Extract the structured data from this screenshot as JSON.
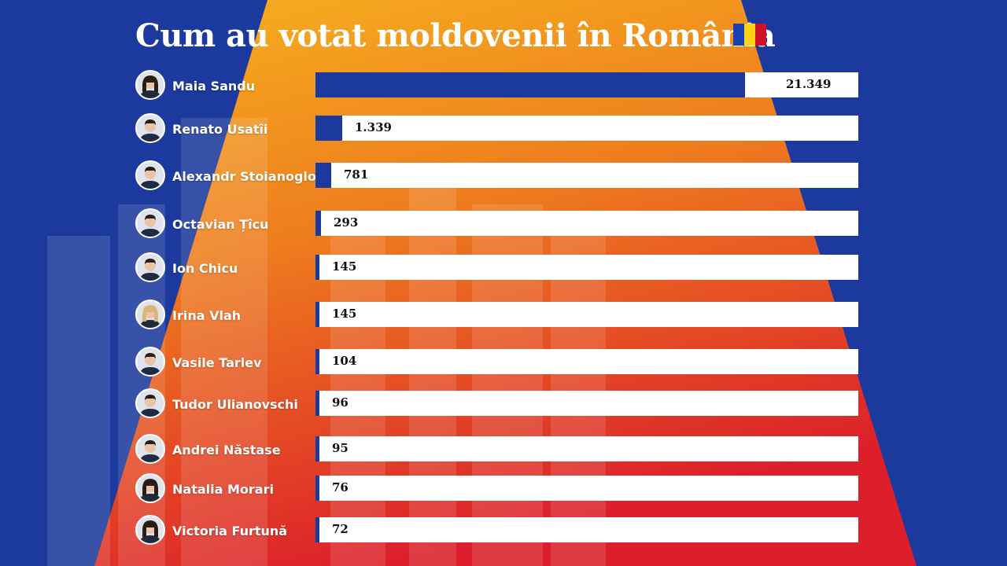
{
  "title": "Cum au votat moldovenii în România",
  "colors": {
    "background_blue": "#1c3a9e",
    "bar_fill": "#1c3a9e",
    "bar_track": "#ffffff",
    "gradient_top": "#f6b21f",
    "gradient_mid": "#ee7d1e",
    "gradient_bottom": "#dc1f2a"
  },
  "flag": {
    "icon": "romania-flag-icon",
    "colors": [
      "#1a3fb0",
      "#fcd116",
      "#ce1126"
    ]
  },
  "chart_data": {
    "type": "bar",
    "orientation": "horizontal",
    "categories": [
      "Maia Sandu",
      "Renato Usatîi",
      "Alexandr Stoianoglo",
      "Octavian Țîcu",
      "Ion Chicu",
      "Irina Vlah",
      "Vasile Tarlev",
      "Tudor Ulianovschi",
      "Andrei Năstase",
      "Natalia Morari",
      "Victoria Furtună"
    ],
    "values": [
      21349,
      1339,
      781,
      293,
      145,
      145,
      104,
      96,
      95,
      76,
      72
    ],
    "value_labels": [
      "21.349",
      "1.339",
      "781",
      "293",
      "145",
      "145",
      "104",
      "96",
      "95",
      "76",
      "72"
    ],
    "xlim": [
      0,
      27000
    ]
  },
  "candidates": [
    {
      "name": "Maia Sandu",
      "value_label": "21.349",
      "avatar": "female"
    },
    {
      "name": "Renato Usatîi",
      "value_label": "1.339",
      "avatar": "male"
    },
    {
      "name": "Alexandr Stoianoglo",
      "value_label": "781",
      "avatar": "male"
    },
    {
      "name": "Octavian Țîcu",
      "value_label": "293",
      "avatar": "male"
    },
    {
      "name": "Ion Chicu",
      "value_label": "145",
      "avatar": "male"
    },
    {
      "name": "Irina Vlah",
      "value_label": "145",
      "avatar": "female-blonde"
    },
    {
      "name": "Vasile Tarlev",
      "value_label": "104",
      "avatar": "male"
    },
    {
      "name": "Tudor Ulianovschi",
      "value_label": "96",
      "avatar": "male"
    },
    {
      "name": "Andrei Năstase",
      "value_label": "95",
      "avatar": "male"
    },
    {
      "name": "Natalia Morari",
      "value_label": "76",
      "avatar": "female"
    },
    {
      "name": "Victoria Furtună",
      "value_label": "72",
      "avatar": "female"
    }
  ]
}
